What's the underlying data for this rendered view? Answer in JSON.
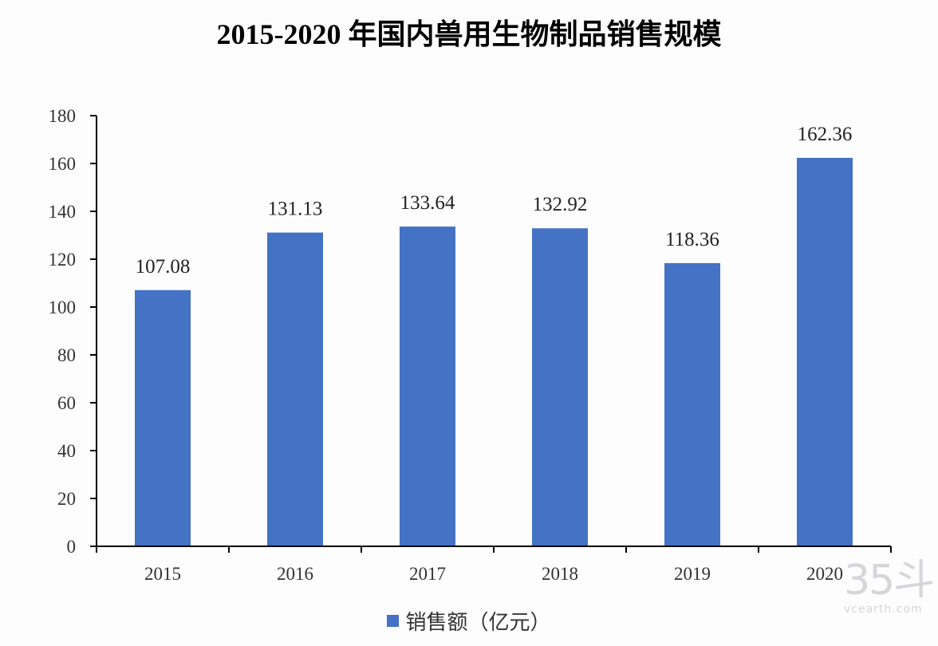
{
  "title": "2015-2020 年国内兽用生物制品销售规模",
  "legend": {
    "label": "销售额（亿元）",
    "color": "#4472C4"
  },
  "watermark": {
    "logo": "35斗",
    "site": "vcearth.com"
  },
  "chart_data": {
    "type": "bar",
    "title": "2015-2020 年国内兽用生物制品销售规模",
    "xlabel": "",
    "ylabel": "",
    "categories": [
      "2015",
      "2016",
      "2017",
      "2018",
      "2019",
      "2020"
    ],
    "series": [
      {
        "name": "销售额（亿元）",
        "values": [
          107.08,
          131.13,
          133.64,
          132.92,
          118.36,
          162.36
        ],
        "color": "#4472C4"
      }
    ],
    "data_labels": [
      "107.08",
      "131.13",
      "133.64",
      "132.92",
      "118.36",
      "162.36"
    ],
    "yticks": [
      0,
      20,
      40,
      60,
      80,
      100,
      120,
      140,
      160,
      180
    ],
    "ylim": [
      0,
      180
    ],
    "grid": false,
    "legend_position": "bottom"
  }
}
